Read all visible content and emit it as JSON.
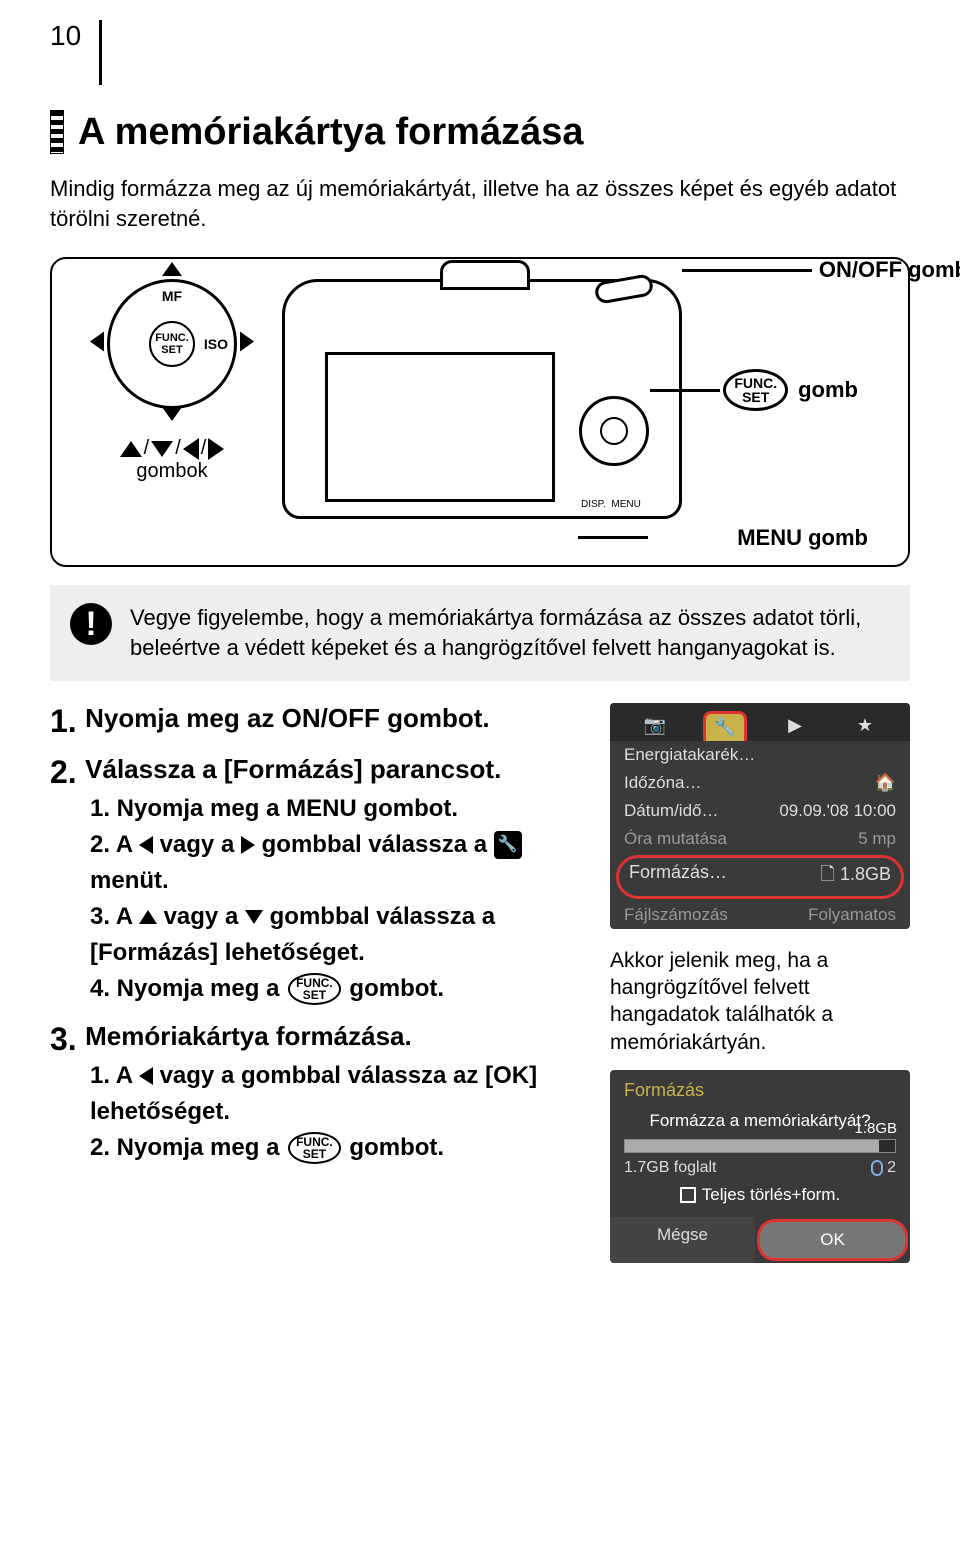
{
  "page_number": "10",
  "main_title": "A memóriakártya formázása",
  "intro": "Mindig formázza meg az új memóriakártyát, illetve ha az összes képet és egyéb adatot törölni szeretné.",
  "diagram": {
    "onoff_label": "ON/OFF gomb",
    "func_label": "gomb",
    "func_btn_top": "FUNC.",
    "func_btn_bottom": "SET",
    "menu_label": "MENU gomb",
    "arrow_buttons_label": "gombok",
    "dpad_top": "MF",
    "dpad_right": "ISO",
    "disp": "DISP.",
    "menu_small": "MENU"
  },
  "warning": "Vegye figyelembe, hogy a memóriakártya formázása az összes adatot törli, beleértve a védett képeket és a hangrögzítővel felvett hanganyagokat is.",
  "steps": {
    "s1": {
      "num": "1",
      "title": "Nyomja meg az ON/OFF gombot."
    },
    "s2": {
      "num": "2",
      "title": "Válassza a [Formázás] parancsot.",
      "sub1": "1. Nyomja meg a MENU gombot.",
      "sub2a": "2. A ",
      "sub2b": " vagy a ",
      "sub2c": " gombbal válassza a ",
      "sub2d": " menüt.",
      "sub3a": "3. A ",
      "sub3b": " vagy a ",
      "sub3c": " gombbal válassza a [Formázás] lehetőséget.",
      "sub4a": "4. Nyomja meg a ",
      "sub4b": " gombot."
    },
    "s3": {
      "num": "3",
      "title": "Memóriakártya formázása.",
      "sub1a": "1. A ",
      "sub1b": " vagy a ",
      "sub1c": " gombbal válassza az [OK] lehetőséget.",
      "sub2a": "2. Nyomja meg a ",
      "sub2b": " gombot."
    }
  },
  "menu_screen": {
    "rows": [
      {
        "l": "Energiatakarék…",
        "r": ""
      },
      {
        "l": "Időzóna…",
        "r": "🏠"
      },
      {
        "l": "Dátum/idő…",
        "r": "09.09.'08 10:00"
      },
      {
        "l": "Óra mutatása",
        "r": "5 mp",
        "dim": true
      }
    ],
    "highlight": {
      "l": "Formázás…",
      "r": "🗋 1.8GB"
    },
    "after": {
      "l": "Fájlszámozás",
      "r": "Folyamatos",
      "dim": true
    }
  },
  "caption": "Akkor jelenik meg, ha a hangrögzítővel felvett hangadatok találhatók a memóriakártyán.",
  "format_dialog": {
    "title": "Formázás",
    "prompt": "Formázza a memóriakártyát?",
    "total": "1.8GB",
    "used": "1.7GB foglalt",
    "audio_count": "2",
    "full_erase": "Teljes törlés+form.",
    "cancel": "Mégse",
    "ok": "OK",
    "bar_fill_pct": 94
  },
  "colors": {
    "highlight_ring": "#d33333",
    "menu_bg": "#3a3a3a",
    "tab_active": "#c9b24a",
    "warn_bg": "#eeeeee"
  }
}
